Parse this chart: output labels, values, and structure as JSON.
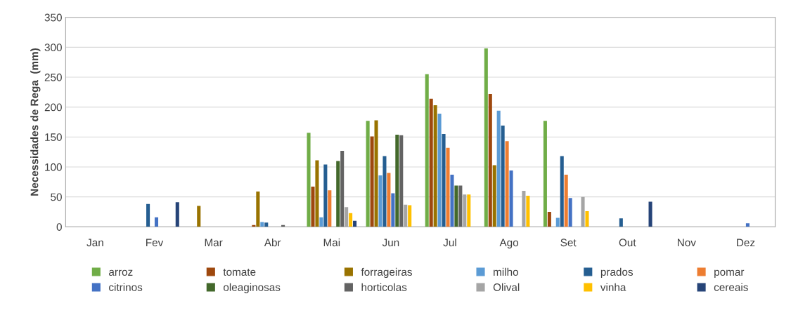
{
  "chart_data": {
    "type": "bar",
    "ylabel": "Necessidades de Rega  (mm)",
    "categories": [
      "Jan",
      "Fev",
      "Mar",
      "Abr",
      "Mai",
      "Jun",
      "Jul",
      "Ago",
      "Set",
      "Out",
      "Nov",
      "Dez"
    ],
    "ylim": [
      0,
      350
    ],
    "yticks": [
      0,
      50,
      100,
      150,
      200,
      250,
      300,
      350
    ],
    "grid": "y",
    "legend": "bottom",
    "series": [
      {
        "name": "arroz",
        "color": "#70ad47",
        "values": [
          0,
          0,
          0,
          0,
          157,
          177,
          255,
          298,
          177,
          0,
          0,
          0
        ]
      },
      {
        "name": "tomate",
        "color": "#9e480e",
        "values": [
          0,
          0,
          0,
          3,
          67,
          151,
          214,
          222,
          25,
          0,
          0,
          0
        ]
      },
      {
        "name": "forrageiras",
        "color": "#997300",
        "values": [
          0,
          0,
          35,
          59,
          111,
          178,
          203,
          103,
          0,
          0,
          0,
          0
        ]
      },
      {
        "name": "milho",
        "color": "#5b9bd5",
        "values": [
          0,
          0,
          0,
          8,
          16,
          86,
          189,
          194,
          15,
          0,
          0,
          0
        ]
      },
      {
        "name": "prados",
        "color": "#255e91",
        "values": [
          0,
          38,
          0,
          7,
          104,
          118,
          155,
          169,
          118,
          14,
          0,
          0
        ]
      },
      {
        "name": "pomar",
        "color": "#ed7d31",
        "values": [
          0,
          0,
          0,
          0,
          61,
          90,
          132,
          143,
          87,
          0,
          0,
          0
        ]
      },
      {
        "name": "citrinos",
        "color": "#4472c4",
        "values": [
          0,
          16,
          0,
          0,
          0,
          56,
          87,
          94,
          48,
          0,
          0,
          6
        ]
      },
      {
        "name": "oleaginosas",
        "color": "#43682b",
        "values": [
          0,
          0,
          0,
          0,
          110,
          154,
          69,
          0,
          0,
          0,
          0,
          0
        ]
      },
      {
        "name": "horticolas",
        "color": "#636363",
        "values": [
          0,
          0,
          0,
          3,
          127,
          153,
          69,
          0,
          0,
          0,
          0,
          0
        ]
      },
      {
        "name": "Olival",
        "color": "#a5a5a5",
        "values": [
          0,
          0,
          0,
          0,
          33,
          37,
          54,
          60,
          50,
          0,
          0,
          0
        ]
      },
      {
        "name": "vinha",
        "color": "#ffc000",
        "values": [
          0,
          0,
          0,
          0,
          23,
          36,
          54,
          52,
          26,
          0,
          0,
          0
        ]
      },
      {
        "name": "cereais",
        "color": "#264478",
        "values": [
          0,
          41,
          0,
          0,
          10,
          0,
          0,
          0,
          0,
          42,
          0,
          0
        ]
      }
    ]
  }
}
